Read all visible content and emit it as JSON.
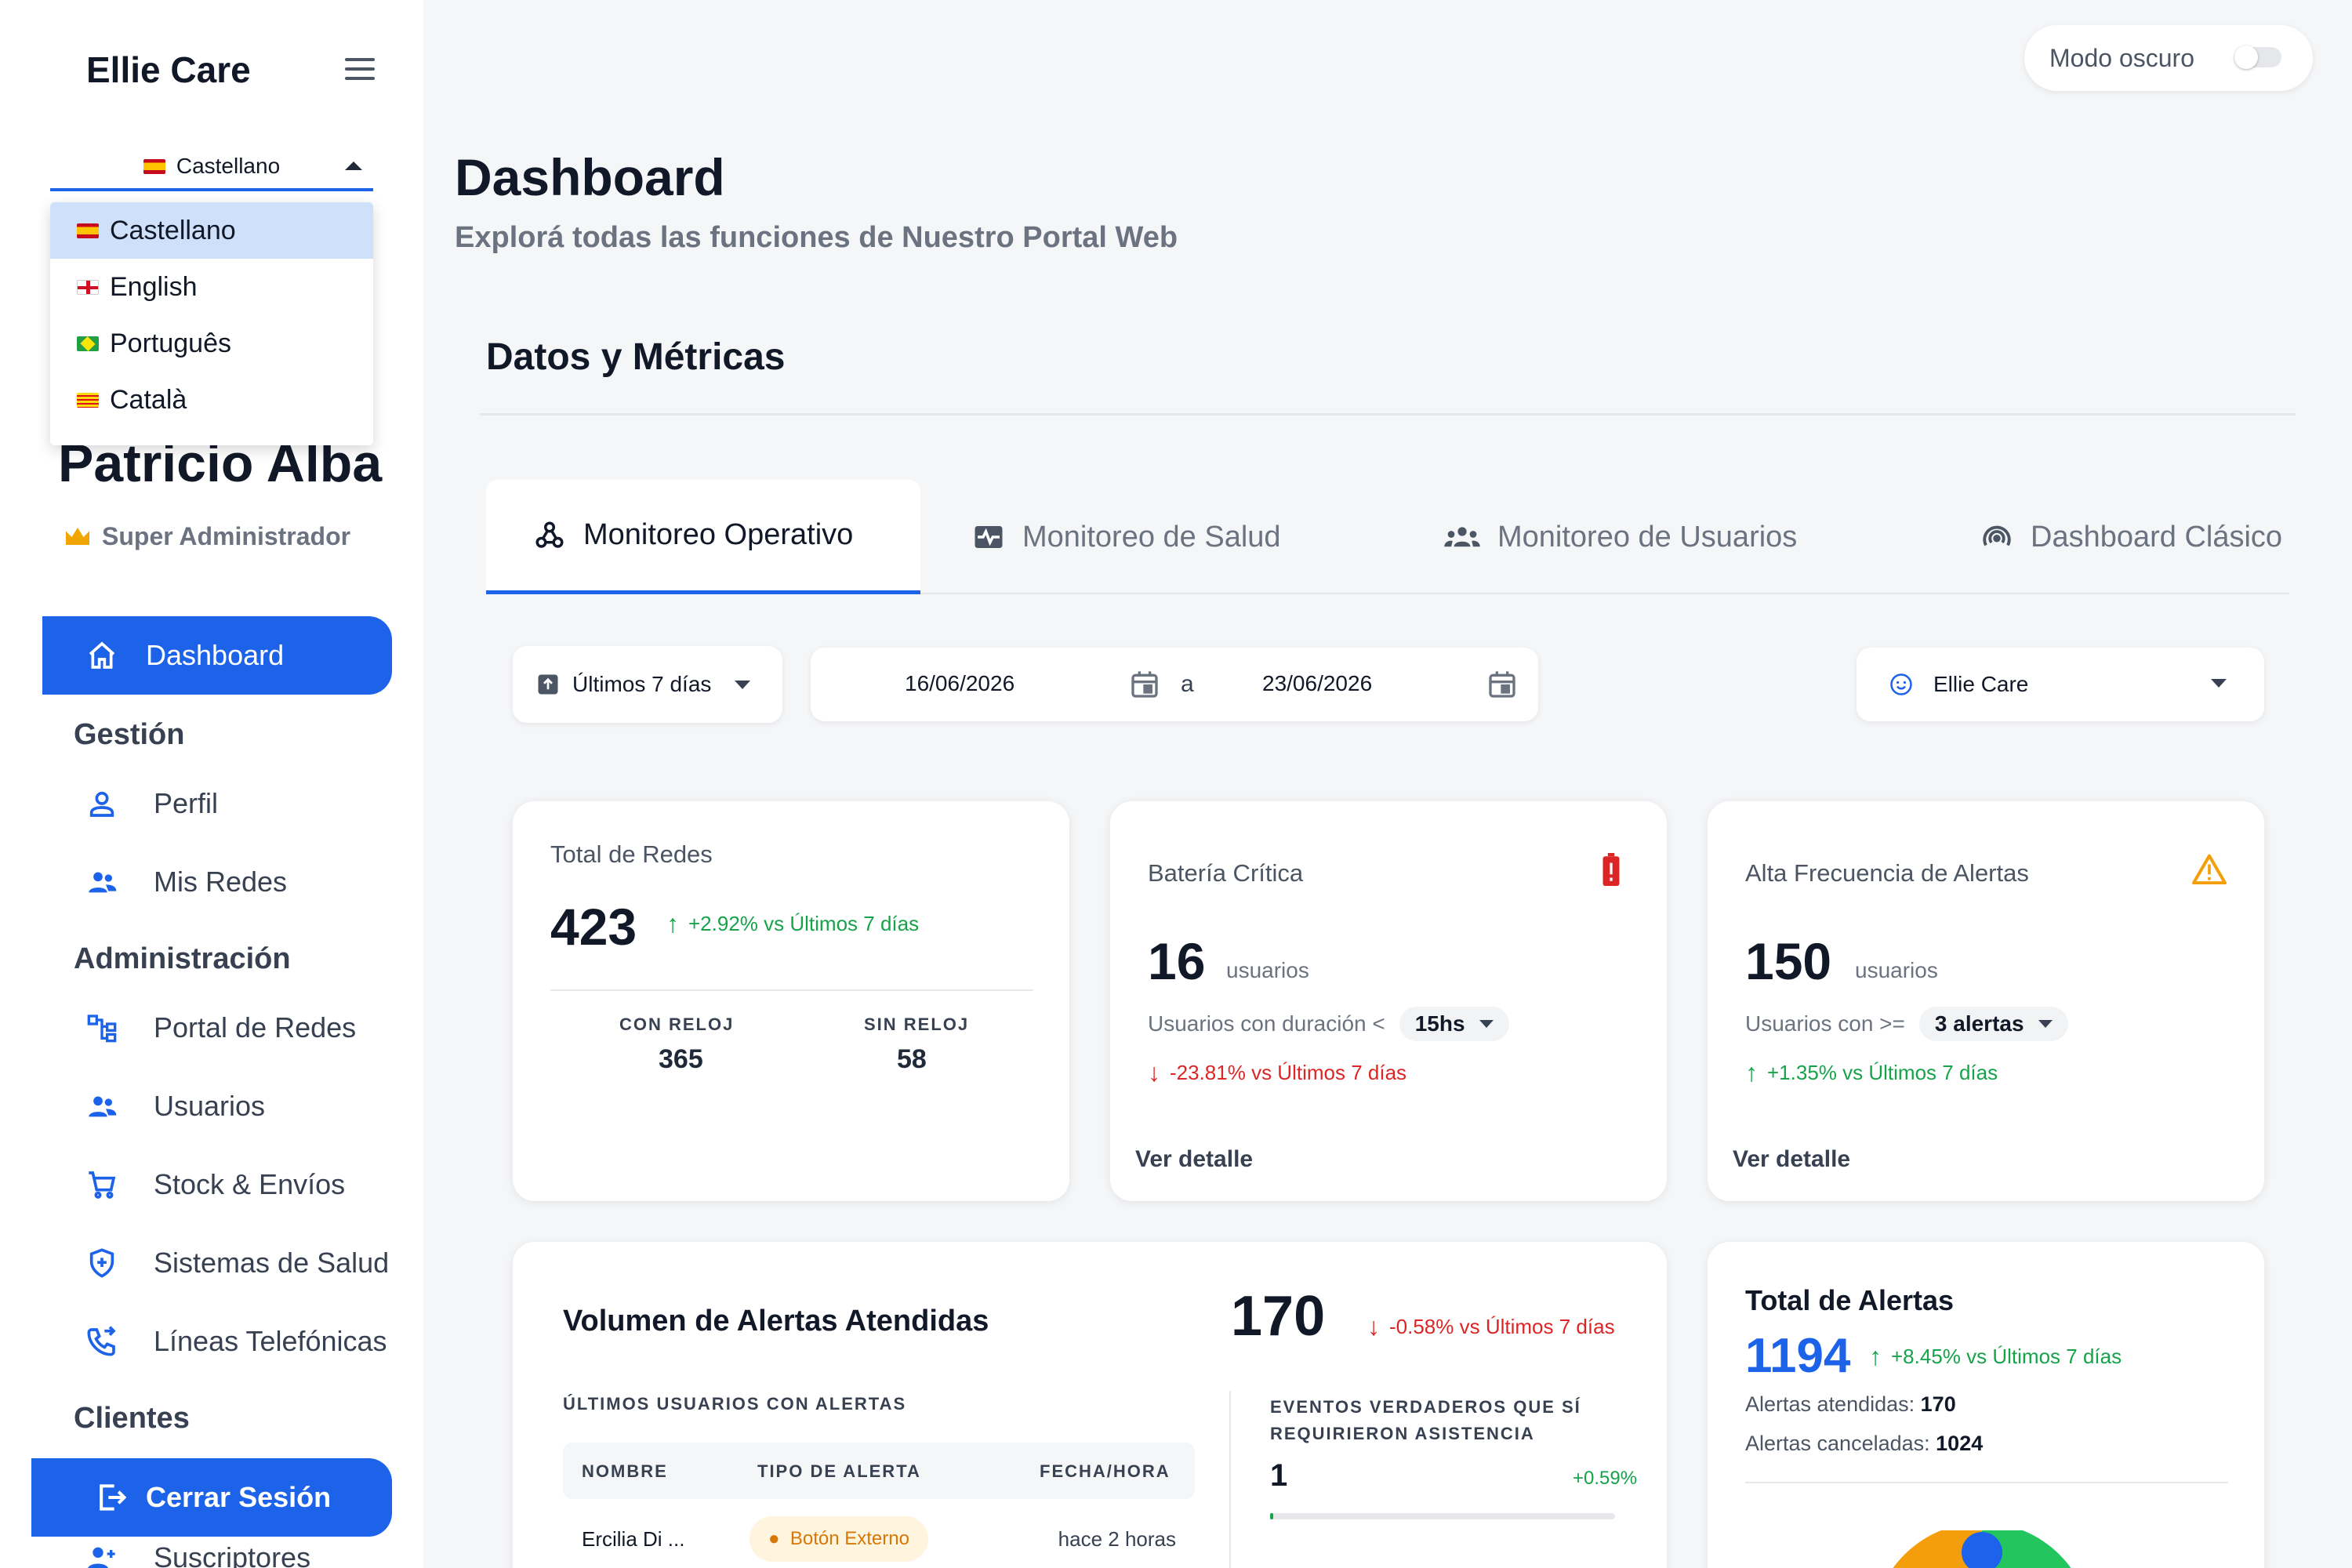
{
  "sidebar": {
    "brand": "Ellie Care",
    "language": {
      "selected": "Castellano",
      "options": [
        "Castellano",
        "English",
        "Português",
        "Català"
      ]
    },
    "user": {
      "name": "Patricio Alba",
      "role": "Super Administrador"
    },
    "nav": {
      "dashboard": "Dashboard",
      "gestion_title": "Gestión",
      "perfil": "Perfil",
      "mis_redes": "Mis Redes",
      "admin_title": "Administración",
      "portal_redes": "Portal de Redes",
      "usuarios": "Usuarios",
      "stock": "Stock & Envíos",
      "sistemas_salud": "Sistemas de Salud",
      "lineas": "Líneas Telefónicas",
      "clientes_title": "Clientes",
      "suscriptores": "Suscriptores"
    },
    "logout": "Cerrar Sesión"
  },
  "header": {
    "dark_mode_label": "Modo oscuro",
    "dark_mode_on": false
  },
  "page": {
    "title": "Dashboard",
    "subtitle": "Explorá todas las funciones de Nuestro Portal Web"
  },
  "section": {
    "title": "Datos y Métricas"
  },
  "tabs": [
    "Monitoreo Operativo",
    "Monitoreo de Salud",
    "Monitoreo de Usuarios",
    "Dashboard Clásico"
  ],
  "filters": {
    "period": "Últimos 7 días",
    "date_from": "16/06/2026",
    "date_sep": "a",
    "date_to": "23/06/2026",
    "org": "Ellie Care"
  },
  "cards": {
    "total_redes": {
      "label": "Total de Redes",
      "value": "423",
      "delta": "+2.92%",
      "delta_text": "vs Últimos 7 días",
      "con_reloj_label": "CON RELOJ",
      "con_reloj": "365",
      "sin_reloj_label": "SIN RELOJ",
      "sin_reloj": "58"
    },
    "bateria": {
      "label": "Batería Crítica",
      "value": "16",
      "unit": "usuarios",
      "filter_label": "Usuarios con duración <",
      "filter_value": "15hs",
      "delta": "-23.81%",
      "delta_text": "vs Últimos 7 días",
      "link": "Ver detalle"
    },
    "alta_frecuencia": {
      "label": "Alta Frecuencia de Alertas",
      "value": "150",
      "unit": "usuarios",
      "filter_label": "Usuarios con >=",
      "filter_value": "3 alertas",
      "delta": "+1.35%",
      "delta_text": "vs Últimos 7 días",
      "link": "Ver detalle"
    },
    "volumen": {
      "title": "Volumen de Alertas Atendidas",
      "value": "170",
      "delta": "-0.58%",
      "delta_text": "vs Últimos 7 días",
      "users_title": "ÚLTIMOS USUARIOS CON ALERTAS",
      "columns": [
        "NOMBRE",
        "TIPO DE ALERTA",
        "FECHA/HORA"
      ],
      "rows": [
        {
          "nombre": "Ercilia Di ...",
          "tipo": "Botón Externo",
          "fecha": "hace 2 horas"
        }
      ],
      "eventos_title_1": "EVENTOS VERDADEROS QUE SÍ",
      "eventos_title_2": "REQUIRIERON ASISTENCIA",
      "eventos_value": "1",
      "eventos_delta": "+0.59%"
    },
    "total_alertas": {
      "title": "Total de Alertas",
      "value": "1194",
      "delta": "+8.45%",
      "delta_text": "vs Últimos 7 días",
      "atendidas_label": "Alertas atendidas:",
      "atendidas": "170",
      "canceladas_label": "Alertas canceladas:",
      "canceladas": "1024"
    }
  },
  "colors": {
    "primary": "#1d63ea",
    "positive": "#16a34a",
    "negative": "#dc2626",
    "warning": "#f59e0b"
  }
}
